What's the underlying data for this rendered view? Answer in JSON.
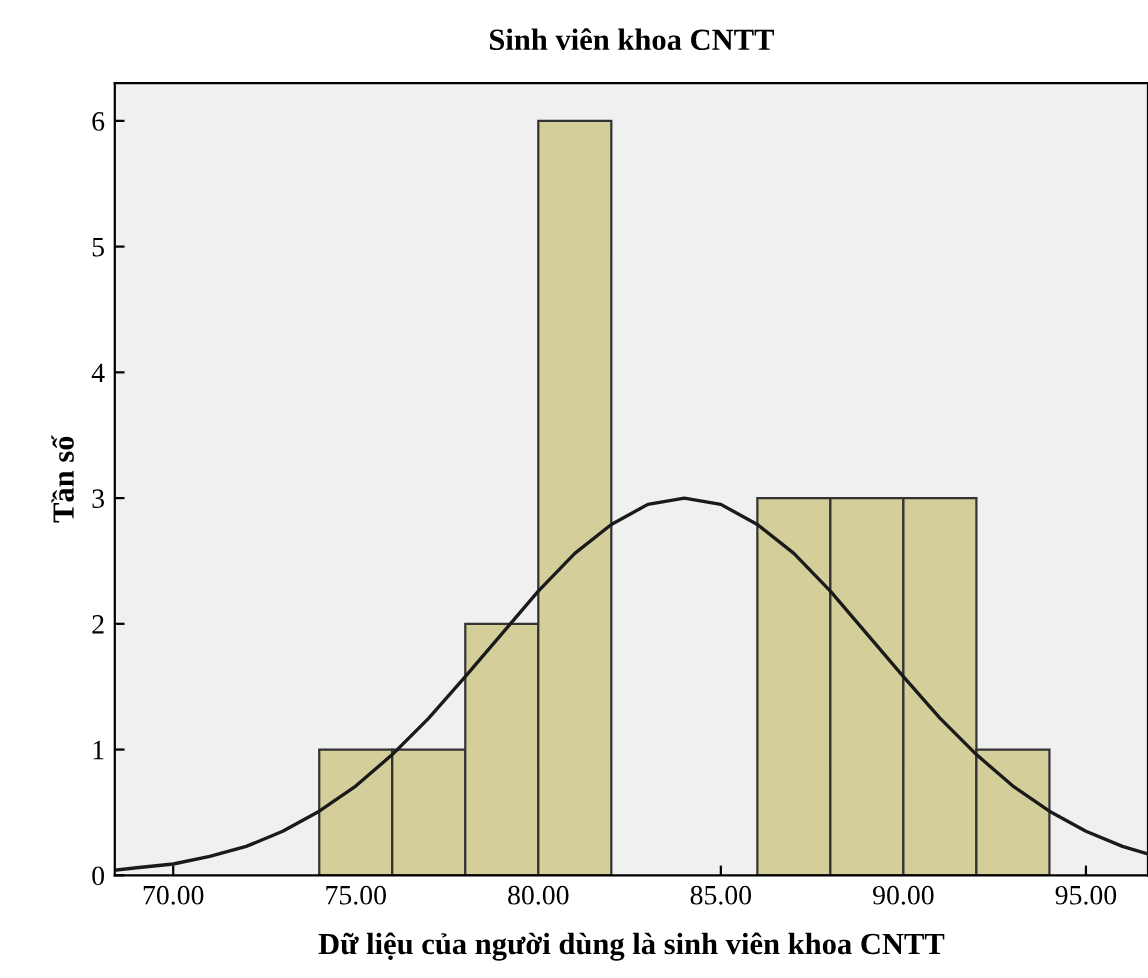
{
  "chart_data": {
    "type": "histogram",
    "title": "Sinh viên khoa CNTT",
    "xlabel": "Dữ liệu của người dùng là sinh viên khoa CNTT",
    "ylabel": "Tần số",
    "bins": [
      74,
      76,
      78,
      80,
      82,
      84,
      86,
      88,
      90,
      92,
      94
    ],
    "values": [
      1,
      1,
      2,
      6,
      0,
      0,
      3,
      3,
      3,
      1
    ],
    "color": "#d4cf9a",
    "series": [
      {
        "type": "line",
        "color": "#1a1a1a",
        "x": [
          68.4,
          69,
          70,
          71,
          72,
          73,
          74,
          75,
          76,
          77,
          78,
          79,
          80,
          81,
          82,
          83,
          84,
          85,
          86,
          87,
          88,
          89,
          90,
          91,
          92,
          93,
          94,
          95,
          96,
          96.7
        ],
        "values": [
          0.04,
          0.06,
          0.09,
          0.15,
          0.23,
          0.35,
          0.51,
          0.71,
          0.96,
          1.25,
          1.58,
          1.92,
          2.26,
          2.56,
          2.79,
          2.95,
          3,
          2.95,
          2.79,
          2.56,
          2.26,
          1.92,
          1.58,
          1.25,
          0.96,
          0.71,
          0.51,
          0.35,
          0.23,
          0.17
        ]
      }
    ],
    "xlim": [
      68.4,
      96.7
    ],
    "ylim": [
      0,
      6.3
    ],
    "xticks": [
      {
        "value": 70,
        "label": "70.00"
      },
      {
        "value": 75,
        "label": "75.00"
      },
      {
        "value": 80,
        "label": "80.00"
      },
      {
        "value": 85,
        "label": "85.00"
      },
      {
        "value": 90,
        "label": "90.00"
      },
      {
        "value": 95,
        "label": "95.00"
      }
    ],
    "yticks": [
      0,
      1,
      2,
      3,
      4,
      5,
      6
    ],
    "grid": false,
    "legend": false
  }
}
